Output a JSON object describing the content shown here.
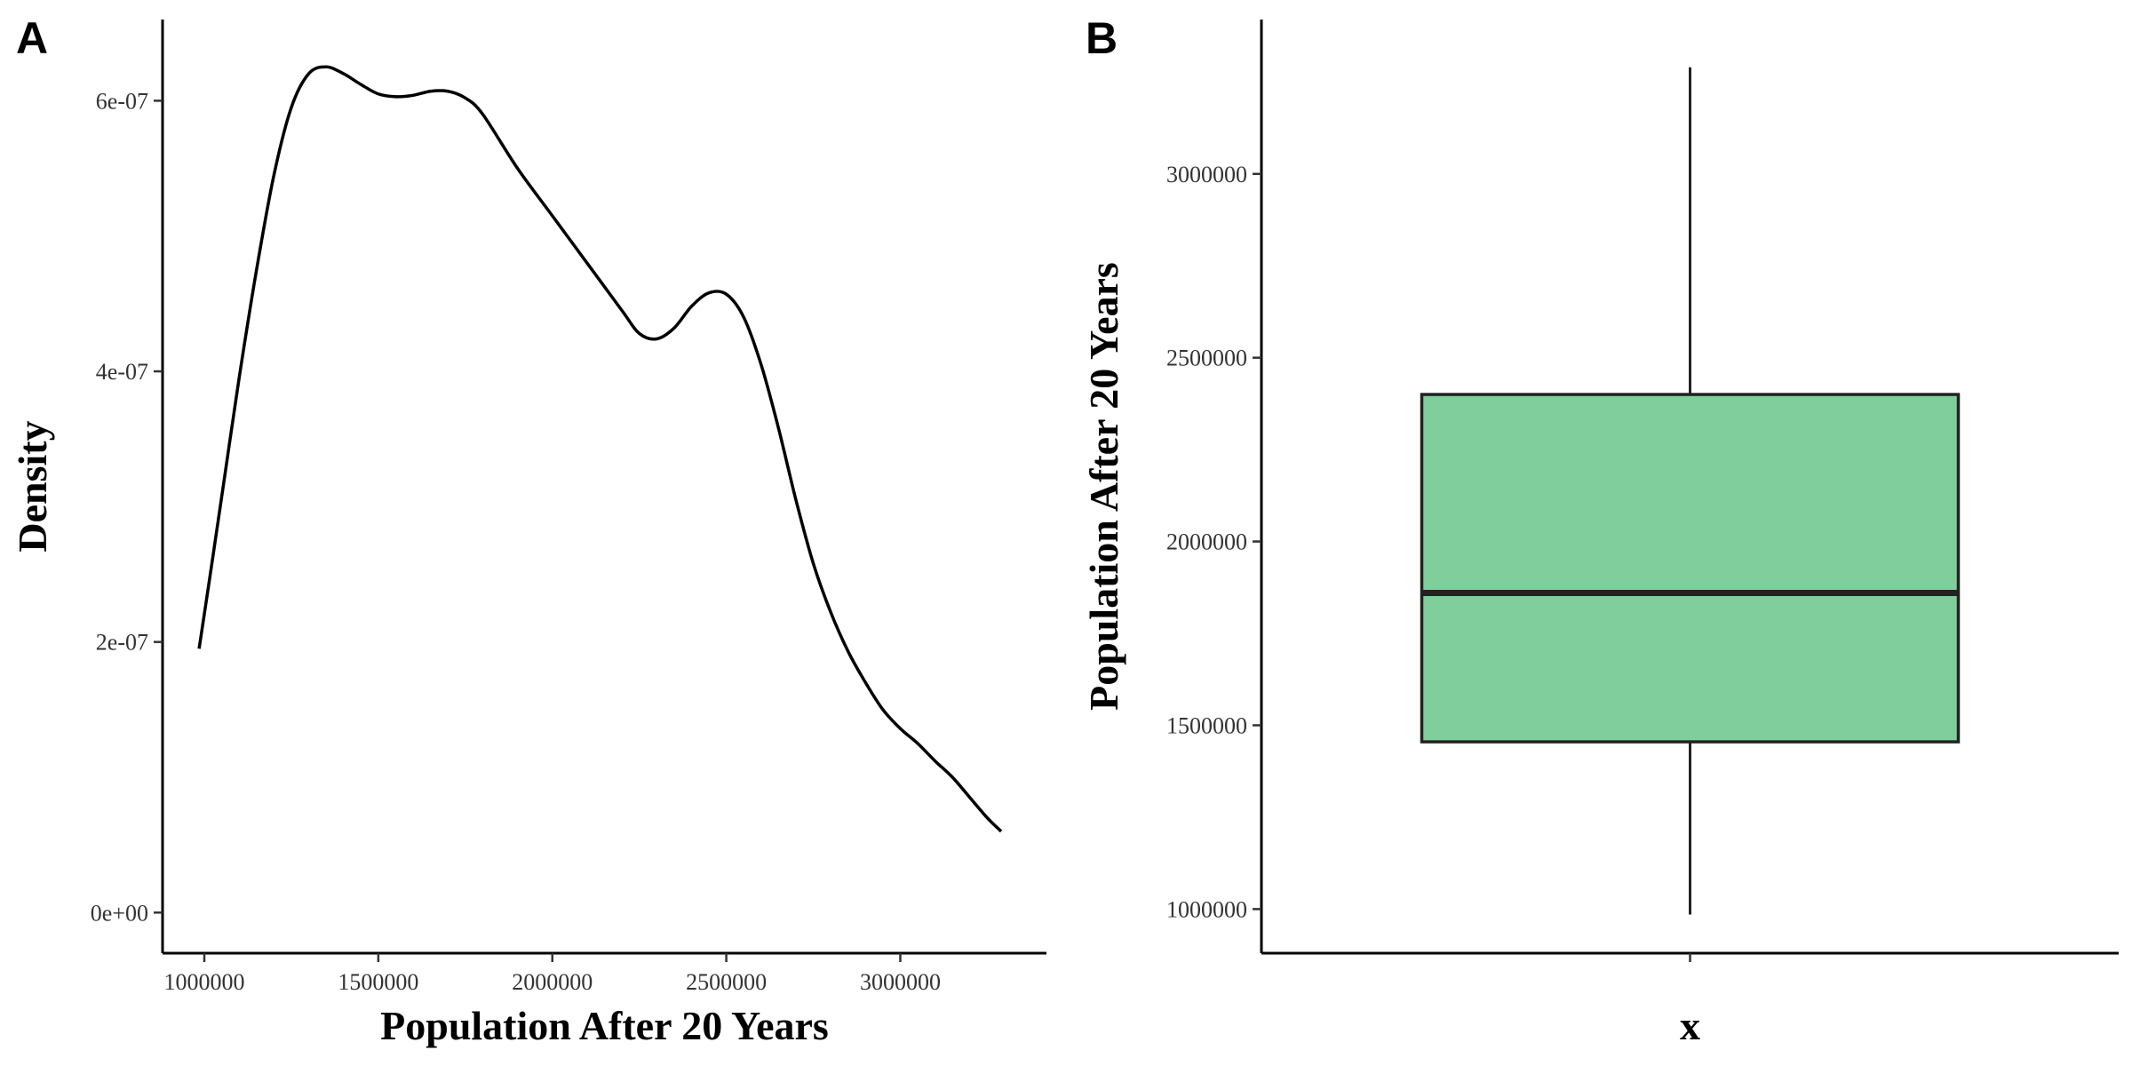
{
  "chart_data": [
    {
      "panel": "A",
      "type": "line",
      "title": "",
      "xlabel": "Population After 20 Years",
      "ylabel": "Density",
      "xlim": [
        880000,
        3420000
      ],
      "ylim": [
        -3e-08,
        6.6e-07
      ],
      "x_ticks": [
        1000000,
        1500000,
        2000000,
        2500000,
        3000000
      ],
      "x_tick_labels": [
        "1000000",
        "1500000",
        "2000000",
        "2500000",
        "3000000"
      ],
      "y_ticks": [
        0,
        2e-07,
        4e-07,
        6e-07
      ],
      "y_tick_labels": [
        "0e+00",
        "2e-07",
        "4e-07",
        "6e-07"
      ],
      "grid": false,
      "line_color": "#000000",
      "x": [
        985000,
        1020000,
        1060000,
        1100000,
        1150000,
        1200000,
        1250000,
        1300000,
        1350000,
        1400000,
        1450000,
        1500000,
        1550000,
        1600000,
        1650000,
        1700000,
        1750000,
        1800000,
        1900000,
        2000000,
        2100000,
        2200000,
        2250000,
        2300000,
        2350000,
        2400000,
        2450000,
        2500000,
        2550000,
        2600000,
        2650000,
        2700000,
        2750000,
        2800000,
        2850000,
        2900000,
        2950000,
        3000000,
        3050000,
        3100000,
        3150000,
        3200000,
        3250000,
        3290000
      ],
      "y": [
        1.95e-07,
        2.55e-07,
        3.25e-07,
        3.95e-07,
        4.75e-07,
        5.45e-07,
        5.95e-07,
        6.2e-07,
        6.25e-07,
        6.2e-07,
        6.12e-07,
        6.05e-07,
        6.03e-07,
        6.04e-07,
        6.07e-07,
        6.07e-07,
        6.02e-07,
        5.9e-07,
        5.5e-07,
        5.15e-07,
        4.8e-07,
        4.45e-07,
        4.28e-07,
        4.24e-07,
        4.32e-07,
        4.48e-07,
        4.58e-07,
        4.57e-07,
        4.4e-07,
        4.05e-07,
        3.58e-07,
        3.05e-07,
        2.58e-07,
        2.22e-07,
        1.93e-07,
        1.7e-07,
        1.5e-07,
        1.36e-07,
        1.25e-07,
        1.12e-07,
        1e-07,
        8.5e-08,
        7e-08,
        6e-08
      ]
    },
    {
      "panel": "B",
      "type": "box",
      "title": "",
      "xlabel": "x",
      "ylabel": "Population After 20 Years",
      "ylim": [
        880000,
        3420000
      ],
      "y_ticks": [
        1000000,
        1500000,
        2000000,
        2500000,
        3000000
      ],
      "y_tick_labels": [
        "1000000",
        "1500000",
        "2000000",
        "2500000",
        "3000000"
      ],
      "grid": false,
      "fill_color": "#80CE9B",
      "stats": {
        "min": 985000,
        "q1": 1455000,
        "median": 1860000,
        "q3": 2400000,
        "max": 3290000
      }
    }
  ]
}
